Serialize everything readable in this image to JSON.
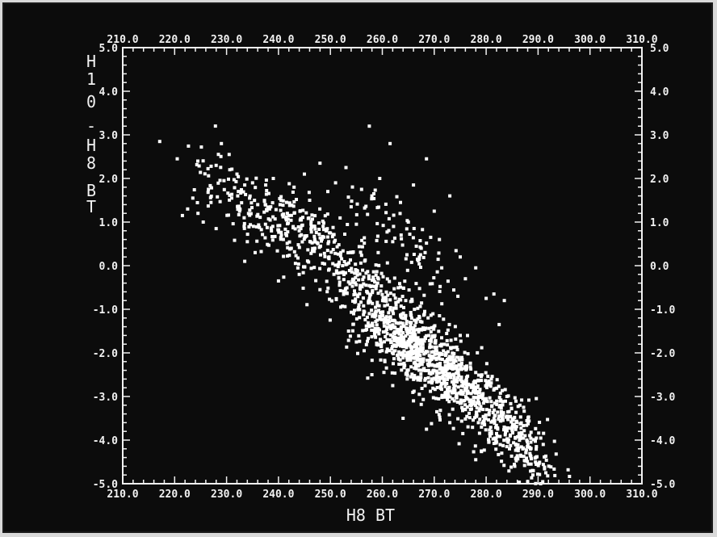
{
  "chart_data": {
    "type": "scatter",
    "title": "",
    "xlabel": "H8 BT",
    "ylabel": "H10 - H8 BT",
    "ylabel_parts": [
      "H",
      "1",
      "0",
      "-",
      "H",
      "8",
      "B",
      "T"
    ],
    "xlim": [
      210,
      310
    ],
    "ylim": [
      -5,
      5
    ],
    "xticks": [
      "210.0",
      "220.0",
      "230.0",
      "240.0",
      "250.0",
      "260.0",
      "270.0",
      "280.0",
      "290.0",
      "300.0",
      "310.0"
    ],
    "yticks": [
      "5.0",
      "4.0",
      "3.0",
      "2.0",
      "1.0",
      "0.0",
      "-1.0",
      "-2.0",
      "-3.0",
      "-4.0",
      "-5.0"
    ],
    "grid": false,
    "colors": {
      "background": "#0c0c0c",
      "points": "#ffffff",
      "axes": "#f2f2f2"
    },
    "series": [
      {
        "points": [
          [
            220.5,
            2.45
          ],
          [
            221.5,
            1.15
          ],
          [
            222.5,
            1.3
          ],
          [
            223.5,
            1.55
          ],
          [
            224.5,
            1.2
          ],
          [
            225.5,
            1.0
          ],
          [
            226.5,
            1.75
          ],
          [
            227.0,
            1.45
          ],
          [
            228.0,
            0.85
          ],
          [
            228.0,
            2.3
          ],
          [
            229.0,
            2.8
          ],
          [
            229.5,
            1.95
          ],
          [
            230.5,
            2.55
          ],
          [
            231.0,
            1.55
          ],
          [
            232.0,
            2.1
          ],
          [
            232.5,
            1.25
          ],
          [
            233.5,
            1.85
          ],
          [
            234.0,
            0.55
          ],
          [
            235.0,
            1.9
          ],
          [
            236.0,
            1.4
          ],
          [
            237.5,
            0.95
          ],
          [
            238.5,
            1.35
          ],
          [
            239.0,
            2.0
          ],
          [
            240.5,
            1.5
          ],
          [
            242.0,
            1.15
          ],
          [
            243.0,
            1.8
          ],
          [
            244.0,
            0.8
          ],
          [
            245.0,
            2.1
          ],
          [
            246.0,
            1.5
          ],
          [
            247.0,
            0.4
          ],
          [
            248.0,
            2.35
          ],
          [
            249.5,
            1.7
          ],
          [
            250.0,
            0.75
          ],
          [
            251.0,
            1.9
          ],
          [
            252.0,
            0.3
          ],
          [
            253.0,
            2.25
          ],
          [
            254.0,
            1.35
          ],
          [
            255.0,
            0.95
          ],
          [
            256.0,
            1.75
          ],
          [
            257.5,
            3.2
          ],
          [
            258.0,
            1.6
          ],
          [
            259.5,
            2.0
          ],
          [
            261.5,
            2.8
          ],
          [
            262.0,
            0.55
          ],
          [
            263.5,
            1.45
          ],
          [
            265.0,
            1.0
          ],
          [
            266.0,
            1.85
          ],
          [
            267.5,
            0.4
          ],
          [
            268.5,
            2.45
          ],
          [
            270.0,
            1.25
          ],
          [
            271.0,
            0.6
          ],
          [
            273.0,
            1.6
          ],
          [
            275.0,
            0.2
          ],
          [
            276.0,
            -0.3
          ],
          [
            278.0,
            -0.05
          ],
          [
            280.0,
            -0.75
          ],
          [
            281.5,
            -0.65
          ],
          [
            282.5,
            -1.35
          ],
          [
            283.5,
            -0.8
          ],
          [
            233.5,
            0.1
          ],
          [
            235.5,
            0.3
          ],
          [
            240.0,
            -0.35
          ],
          [
            244.0,
            -0.2
          ],
          [
            248.0,
            -0.55
          ],
          [
            252.0,
            -0.95
          ],
          [
            253.5,
            -1.5
          ],
          [
            255.0,
            -1.75
          ],
          [
            259.0,
            -1.25
          ],
          [
            261.0,
            -0.9
          ],
          [
            264.0,
            -1.65
          ],
          [
            266.5,
            -1.3
          ],
          [
            268.0,
            -2.4
          ],
          [
            270.5,
            -1.95
          ],
          [
            272.0,
            -2.7
          ],
          [
            273.5,
            -2.3
          ],
          [
            275.0,
            -1.6
          ],
          [
            276.5,
            -2.9
          ],
          [
            278.0,
            -2.45
          ],
          [
            279.5,
            -3.15
          ],
          [
            281.0,
            -2.6
          ],
          [
            282.5,
            -3.45
          ],
          [
            284.0,
            -3.0
          ],
          [
            285.0,
            -3.7
          ],
          [
            286.5,
            -3.2
          ],
          [
            287.5,
            -3.9
          ],
          [
            288.5,
            -4.35
          ],
          [
            289.0,
            -4.8
          ],
          [
            290.0,
            -4.55
          ],
          [
            291.0,
            -4.1
          ],
          [
            288.0,
            -4.95
          ],
          [
            285.5,
            -4.6
          ],
          [
            283.0,
            -4.3
          ],
          [
            280.5,
            -4.05
          ],
          [
            278.0,
            -4.45
          ],
          [
            275.5,
            -3.85
          ],
          [
            273.0,
            -3.6
          ],
          [
            270.5,
            -3.35
          ],
          [
            268.5,
            -3.75
          ],
          [
            266.0,
            -3.1
          ],
          [
            264.0,
            -3.5
          ],
          [
            262.0,
            -2.75
          ],
          [
            260.5,
            -2.2
          ],
          [
            258.0,
            -2.5
          ],
          [
            256.5,
            -1.95
          ],
          [
            261.5,
            -1.7
          ],
          [
            263.0,
            -2.05
          ],
          [
            265.5,
            -2.55
          ],
          [
            267.0,
            -1.8
          ],
          [
            269.5,
            -2.15
          ],
          [
            271.5,
            -2.45
          ],
          [
            274.0,
            -2.85
          ],
          [
            276.0,
            -3.3
          ],
          [
            278.5,
            -3.6
          ],
          [
            280.0,
            -3.05
          ],
          [
            282.0,
            -3.85
          ],
          [
            284.5,
            -4.2
          ],
          [
            286.0,
            -4.4
          ],
          [
            290.5,
            -5.0
          ],
          [
            291.5,
            -4.75
          ]
        ]
      }
    ],
    "dense_regions": [
      {
        "cx": 266,
        "cy": -1.9,
        "sx": 6.5,
        "sy": 0.65,
        "n": 620
      },
      {
        "cx": 276,
        "cy": -2.9,
        "sx": 6.5,
        "sy": 0.75,
        "n": 320
      },
      {
        "cx": 285,
        "cy": -3.9,
        "sx": 4.0,
        "sy": 0.6,
        "n": 200
      },
      {
        "cx": 258,
        "cy": -0.5,
        "sx": 7.5,
        "sy": 0.75,
        "n": 230
      },
      {
        "cx": 246,
        "cy": 0.7,
        "sx": 6.5,
        "sy": 0.65,
        "n": 160
      },
      {
        "cx": 235,
        "cy": 1.2,
        "sx": 6.0,
        "sy": 0.6,
        "n": 120
      },
      {
        "cx": 264,
        "cy": 0.7,
        "sx": 5.0,
        "sy": 0.6,
        "n": 70
      }
    ]
  }
}
